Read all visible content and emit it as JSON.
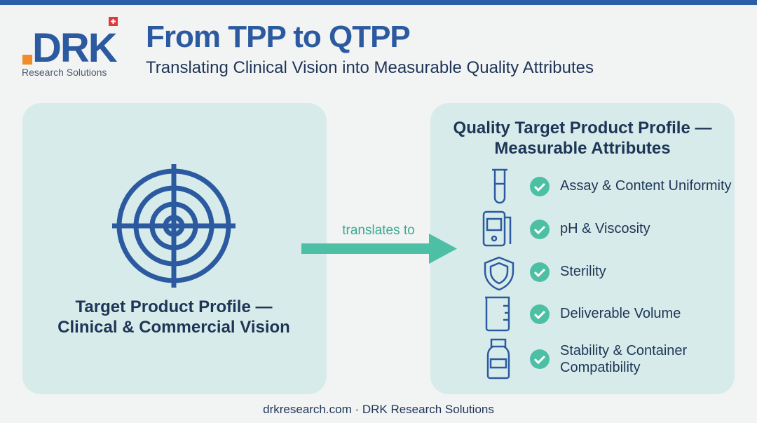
{
  "header": {
    "logo": "DRK",
    "logo_subtitle": "Research Solutions",
    "title": "From TPP to QTPP",
    "subtitle": "Translating Clinical Vision into Measurable Quality Attributes"
  },
  "left_panel": {
    "label_lines": [
      "Target Product Profile —",
      "Clinical & Commercial Vision"
    ]
  },
  "arrow": {
    "label": "translates to"
  },
  "right_panel": {
    "title_lines": [
      "Quality Target Product Profile —",
      "Measurable Attributes"
    ],
    "items": [
      "Assay & Content Uniformity",
      "pH & Viscosity",
      "Sterility",
      "Deliverable Volume",
      "Stability & Container Compatibility"
    ]
  },
  "footer": "drkresearch.com · DRK Research Solutions"
}
